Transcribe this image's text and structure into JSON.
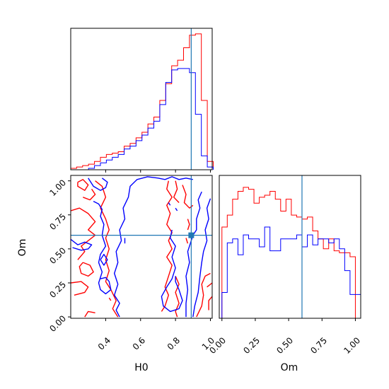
{
  "chart_data": {
    "type": "corner",
    "params": [
      "H0",
      "Om"
    ],
    "truths": {
      "H0": 0.89,
      "Om": 0.6
    },
    "colors": {
      "red": "#ff0000",
      "blue": "#0000ff",
      "truth": "#1f77b4"
    },
    "hist_H0": {
      "xlim": [
        0.2,
        1.01
      ],
      "bins": [
        0.2,
        0.234,
        0.268,
        0.302,
        0.336,
        0.37,
        0.404,
        0.438,
        0.472,
        0.506,
        0.54,
        0.574,
        0.608,
        0.642,
        0.676,
        0.71,
        0.744,
        0.778,
        0.812,
        0.846,
        0.88,
        0.914,
        0.948,
        0.982,
        1.016
      ],
      "series": [
        {
          "color": "red",
          "values": [
            1,
            2,
            3,
            4,
            6,
            9,
            11,
            12,
            13,
            17,
            19,
            23,
            27,
            33,
            38,
            50,
            62,
            75,
            79,
            88,
            97,
            98,
            50,
            6
          ]
        },
        {
          "color": "blue",
          "values": [
            0,
            0,
            0,
            1,
            3,
            5,
            7,
            9,
            11,
            15,
            17,
            21,
            25,
            30,
            35,
            47,
            63,
            72,
            73,
            73,
            70,
            40,
            10,
            2
          ]
        }
      ]
    },
    "hist_Om": {
      "xlim": [
        -0.02,
        1.04
      ],
      "xticks": [
        "0.00",
        "0.25",
        "0.50",
        "0.75",
        "1.00"
      ],
      "bins": [
        0.0,
        0.04,
        0.08,
        0.12,
        0.16,
        0.2,
        0.24,
        0.28,
        0.32,
        0.36,
        0.4,
        0.44,
        0.48,
        0.52,
        0.56,
        0.6,
        0.64,
        0.68,
        0.72,
        0.76,
        0.8,
        0.84,
        0.88,
        0.92,
        0.96,
        1.0,
        1.04
      ],
      "series": [
        {
          "color": "red",
          "values": [
            46,
            52,
            60,
            64,
            66,
            65,
            58,
            61,
            62,
            64,
            60,
            54,
            60,
            52,
            51,
            50,
            51,
            44,
            40,
            35,
            40,
            34,
            33,
            33,
            31,
            0
          ]
        },
        {
          "color": "blue",
          "values": [
            13,
            38,
            40,
            32,
            42,
            40,
            40,
            36,
            46,
            34,
            34,
            40,
            40,
            40,
            42,
            36,
            42,
            37,
            40,
            40,
            38,
            40,
            35,
            24,
            12,
            12
          ]
        }
      ]
    },
    "scatter": {
      "xlabel": "H0",
      "ylabel": "Om",
      "xlim": [
        0.2,
        1.01
      ],
      "ylim": [
        -0.01,
        1.04
      ],
      "xticks": [
        "0.4",
        "0.6",
        "0.8",
        "1.0"
      ],
      "yticks": [
        "0.00",
        "0.25",
        "0.50",
        "0.75",
        "1.00"
      ],
      "contours": [
        {
          "color": "red",
          "points": [
            [
              0.24,
              0.99
            ],
            [
              0.27,
              1.01
            ],
            [
              0.3,
              0.97
            ],
            [
              0.28,
              0.93
            ],
            [
              0.24,
              0.96
            ],
            [
              0.24,
              0.99
            ]
          ]
        },
        {
          "color": "red",
          "points": [
            [
              0.27,
              0.88
            ],
            [
              0.31,
              0.86
            ],
            [
              0.34,
              0.9
            ],
            [
              0.32,
              0.94
            ]
          ]
        },
        {
          "color": "red",
          "points": [
            [
              0.2,
              0.78
            ],
            [
              0.25,
              0.8
            ],
            [
              0.3,
              0.76
            ],
            [
              0.34,
              0.7
            ],
            [
              0.3,
              0.64
            ],
            [
              0.34,
              0.6
            ],
            [
              0.3,
              0.56
            ],
            [
              0.26,
              0.52
            ],
            [
              0.28,
              0.48
            ],
            [
              0.24,
              0.42
            ]
          ]
        },
        {
          "color": "red",
          "points": [
            [
              0.27,
              0.4
            ],
            [
              0.31,
              0.38
            ],
            [
              0.33,
              0.33
            ],
            [
              0.3,
              0.3
            ],
            [
              0.26,
              0.32
            ],
            [
              0.25,
              0.37
            ],
            [
              0.27,
              0.4
            ]
          ]
        },
        {
          "color": "red",
          "points": [
            [
              0.2,
              0.25
            ],
            [
              0.26,
              0.26
            ],
            [
              0.3,
              0.22
            ],
            [
              0.28,
              0.18
            ],
            [
              0.22,
              0.16
            ]
          ]
        },
        {
          "color": "red",
          "points": [
            [
              0.28,
              0.0
            ],
            [
              0.3,
              0.04
            ],
            [
              0.34,
              0.03
            ]
          ]
        },
        {
          "color": "red",
          "points": [
            [
              0.34,
              1.0
            ],
            [
              0.38,
              0.96
            ],
            [
              0.4,
              0.88
            ],
            [
              0.37,
              0.8
            ],
            [
              0.4,
              0.72
            ],
            [
              0.42,
              0.64
            ],
            [
              0.4,
              0.58
            ],
            [
              0.42,
              0.5
            ],
            [
              0.4,
              0.42
            ],
            [
              0.42,
              0.34
            ],
            [
              0.4,
              0.26
            ],
            [
              0.43,
              0.2
            ],
            [
              0.46,
              0.12
            ],
            [
              0.44,
              0.06
            ],
            [
              0.47,
              0.0
            ]
          ]
        },
        {
          "color": "red",
          "points": [
            [
              0.42,
              0.14
            ],
            [
              0.43,
              0.12
            ]
          ]
        },
        {
          "color": "red",
          "points": [
            [
              0.76,
              1.0
            ],
            [
              0.75,
              0.94
            ],
            [
              0.78,
              0.88
            ],
            [
              0.75,
              0.82
            ],
            [
              0.77,
              0.76
            ],
            [
              0.75,
              0.68
            ],
            [
              0.78,
              0.62
            ],
            [
              0.76,
              0.56
            ],
            [
              0.78,
              0.5
            ],
            [
              0.75,
              0.44
            ],
            [
              0.78,
              0.38
            ],
            [
              0.76,
              0.3
            ],
            [
              0.74,
              0.22
            ],
            [
              0.76,
              0.16
            ],
            [
              0.74,
              0.08
            ],
            [
              0.72,
              0.04
            ]
          ]
        },
        {
          "color": "red",
          "points": [
            [
              0.8,
              1.0
            ],
            [
              0.81,
              0.94
            ],
            [
              0.79,
              0.88
            ],
            [
              0.82,
              0.84
            ]
          ]
        },
        {
          "color": "red",
          "points": [
            [
              0.84,
              0.97
            ],
            [
              0.86,
              0.9
            ],
            [
              0.85,
              0.84
            ],
            [
              0.88,
              0.8
            ],
            [
              0.9,
              0.82
            ]
          ]
        },
        {
          "color": "red",
          "points": [
            [
              0.87,
              0.72
            ],
            [
              0.88,
              0.68
            ],
            [
              0.87,
              0.64
            ]
          ]
        },
        {
          "color": "red",
          "points": [
            [
              0.86,
              0.58
            ],
            [
              0.87,
              0.54
            ]
          ]
        },
        {
          "color": "red",
          "points": [
            [
              0.8,
              0.3
            ],
            [
              0.82,
              0.24
            ],
            [
              0.8,
              0.18
            ],
            [
              0.82,
              0.1
            ],
            [
              0.8,
              0.04
            ],
            [
              0.81,
              0.0
            ]
          ]
        },
        {
          "color": "red",
          "points": [
            [
              0.92,
              0.0
            ],
            [
              0.95,
              0.08
            ],
            [
              0.96,
              0.16
            ],
            [
              0.95,
              0.24
            ],
            [
              0.97,
              0.3
            ],
            [
              1.0,
              0.32
            ]
          ]
        },
        {
          "color": "red",
          "points": [
            [
              0.99,
              0.05
            ],
            [
              0.99,
              0.12
            ],
            [
              1.01,
              0.15
            ]
          ]
        },
        {
          "color": "red",
          "points": [
            [
              0.98,
              0.22
            ],
            [
              1.01,
              0.25
            ]
          ]
        },
        {
          "color": "blue",
          "points": [
            [
              0.2,
              0.57
            ],
            [
              0.24,
              0.53
            ],
            [
              0.28,
              0.55
            ],
            [
              0.32,
              0.53
            ],
            [
              0.3,
              0.5
            ],
            [
              0.26,
              0.49
            ],
            [
              0.21,
              0.51
            ]
          ]
        },
        {
          "color": "blue",
          "points": [
            [
              0.3,
              1.02
            ],
            [
              0.33,
              0.96
            ],
            [
              0.37,
              0.93
            ],
            [
              0.4,
              0.95
            ],
            [
              0.41,
              0.99
            ],
            [
              0.38,
              1.02
            ]
          ]
        },
        {
          "color": "blue",
          "points": [
            [
              0.33,
              0.85
            ],
            [
              0.36,
              0.83
            ],
            [
              0.38,
              0.79
            ],
            [
              0.37,
              0.74
            ],
            [
              0.39,
              0.68
            ],
            [
              0.38,
              0.6
            ],
            [
              0.4,
              0.52
            ],
            [
              0.37,
              0.46
            ],
            [
              0.36,
              0.4
            ],
            [
              0.38,
              0.33
            ],
            [
              0.36,
              0.25
            ],
            [
              0.37,
              0.2
            ],
            [
              0.4,
              0.17
            ],
            [
              0.43,
              0.2
            ],
            [
              0.42,
              0.26
            ],
            [
              0.4,
              0.29
            ],
            [
              0.37,
              0.28
            ]
          ]
        },
        {
          "color": "blue",
          "points": [
            [
              0.37,
              0.42
            ],
            [
              0.39,
              0.38
            ],
            [
              0.41,
              0.42
            ],
            [
              0.39,
              0.46
            ],
            [
              0.37,
              0.42
            ]
          ]
        },
        {
          "color": "blue",
          "points": [
            [
              0.51,
              0.58
            ],
            [
              0.51,
              0.54
            ]
          ]
        },
        {
          "color": "blue",
          "points": [
            [
              0.48,
              0.0
            ],
            [
              0.46,
              0.05
            ],
            [
              0.48,
              0.1
            ],
            [
              0.45,
              0.16
            ],
            [
              0.47,
              0.24
            ],
            [
              0.45,
              0.32
            ],
            [
              0.47,
              0.4
            ],
            [
              0.46,
              0.48
            ],
            [
              0.49,
              0.56
            ],
            [
              0.48,
              0.64
            ],
            [
              0.51,
              0.72
            ],
            [
              0.5,
              0.8
            ],
            [
              0.53,
              0.88
            ],
            [
              0.54,
              0.96
            ],
            [
              0.58,
              1.01
            ],
            [
              0.64,
              1.03
            ],
            [
              0.7,
              1.02
            ],
            [
              0.74,
              1.01
            ],
            [
              0.78,
              1.03
            ],
            [
              0.82,
              1.01
            ],
            [
              0.86,
              1.02
            ],
            [
              0.9,
              1.01
            ]
          ]
        },
        {
          "color": "blue",
          "points": [
            [
              0.76,
              0.84
            ],
            [
              0.77,
              0.82
            ]
          ]
        },
        {
          "color": "blue",
          "points": [
            [
              0.8,
              0.8
            ],
            [
              0.81,
              0.78
            ]
          ]
        },
        {
          "color": "blue",
          "points": [
            [
              0.78,
              0.64
            ],
            [
              0.77,
              0.58
            ],
            [
              0.8,
              0.52
            ],
            [
              0.78,
              0.44
            ],
            [
              0.8,
              0.36
            ],
            [
              0.78,
              0.28
            ],
            [
              0.75,
              0.22
            ],
            [
              0.72,
              0.15
            ],
            [
              0.73,
              0.08
            ],
            [
              0.77,
              0.04
            ],
            [
              0.82,
              0.06
            ],
            [
              0.84,
              0.12
            ],
            [
              0.82,
              0.2
            ],
            [
              0.8,
              0.26
            ],
            [
              0.8,
              0.3
            ]
          ]
        },
        {
          "color": "blue",
          "points": [
            [
              0.86,
              0.0
            ],
            [
              0.86,
              0.1
            ],
            [
              0.87,
              0.2
            ],
            [
              0.86,
              0.3
            ],
            [
              0.88,
              0.4
            ],
            [
              0.87,
              0.48
            ],
            [
              0.89,
              0.56
            ],
            [
              0.9,
              0.6
            ],
            [
              0.92,
              0.64
            ],
            [
              0.92,
              0.72
            ],
            [
              0.94,
              0.8
            ],
            [
              0.93,
              0.86
            ],
            [
              0.95,
              0.92
            ]
          ]
        },
        {
          "color": "blue",
          "points": [
            [
              0.9,
              0.0
            ],
            [
              0.91,
              0.08
            ],
            [
              0.93,
              0.18
            ],
            [
              0.94,
              0.3
            ],
            [
              0.95,
              0.4
            ],
            [
              0.96,
              0.48
            ],
            [
              0.98,
              0.56
            ],
            [
              0.97,
              0.64
            ],
            [
              0.99,
              0.72
            ],
            [
              0.98,
              0.8
            ],
            [
              1.0,
              0.87
            ]
          ]
        }
      ]
    }
  }
}
